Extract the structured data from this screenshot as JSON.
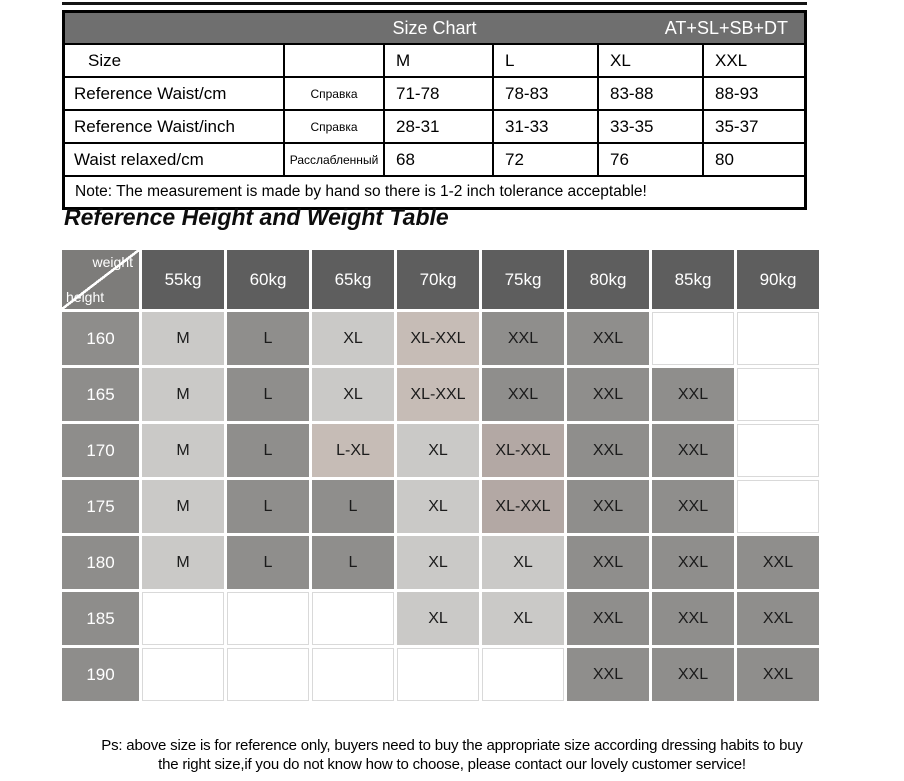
{
  "colors": {
    "bar": "#6f6f6f",
    "head": "#5e5e5e",
    "corner": "#7d7c7a",
    "rowhead": "#8e8d8b",
    "light": "#cac9c7",
    "med": "#8f8e8c",
    "warm": "#c6bcb6",
    "warm2": "#b3a8a4"
  },
  "size_chart": {
    "title": "Size Chart",
    "tag": "AT+SL+SB+DT",
    "rows": [
      {
        "label": "Size",
        "ru": "",
        "values": [
          "M",
          "L",
          "XL",
          "XXL"
        ]
      },
      {
        "label": "Reference Waist/cm",
        "ru": "Справка",
        "values": [
          "71-78",
          "78-83",
          "83-88",
          "88-93"
        ]
      },
      {
        "label": "Reference Waist/inch",
        "ru": "Справка",
        "values": [
          "28-31",
          "31-33",
          "33-35",
          "35-37"
        ]
      },
      {
        "label": "Waist relaxed/cm",
        "ru": "Расслабленный",
        "values": [
          "68",
          "72",
          "76",
          "80"
        ]
      }
    ],
    "note": "Note: The measurement is made by hand so there is 1-2 inch tolerance acceptable!"
  },
  "height_weight": {
    "heading": "Reference Height and Weight Table",
    "corner_top": "weight",
    "corner_bottom": "height",
    "weights": [
      "55kg",
      "60kg",
      "65kg",
      "70kg",
      "75kg",
      "80kg",
      "85kg",
      "90kg"
    ],
    "rows": [
      {
        "height": "160",
        "cells": [
          {
            "t": "M",
            "s": "light"
          },
          {
            "t": "L",
            "s": "med"
          },
          {
            "t": "XL",
            "s": "light"
          },
          {
            "t": "XL-XXL",
            "s": "warm"
          },
          {
            "t": "XXL",
            "s": "med"
          },
          {
            "t": "XXL",
            "s": "med"
          },
          {
            "t": "",
            "s": "empty"
          },
          {
            "t": "",
            "s": "empty"
          }
        ]
      },
      {
        "height": "165",
        "cells": [
          {
            "t": "M",
            "s": "light"
          },
          {
            "t": "L",
            "s": "med"
          },
          {
            "t": "XL",
            "s": "light"
          },
          {
            "t": "XL-XXL",
            "s": "warm"
          },
          {
            "t": "XXL",
            "s": "med"
          },
          {
            "t": "XXL",
            "s": "med"
          },
          {
            "t": "XXL",
            "s": "med"
          },
          {
            "t": "",
            "s": "empty"
          }
        ]
      },
      {
        "height": "170",
        "cells": [
          {
            "t": "M",
            "s": "light"
          },
          {
            "t": "L",
            "s": "med"
          },
          {
            "t": "L-XL",
            "s": "warm"
          },
          {
            "t": "XL",
            "s": "light"
          },
          {
            "t": "XL-XXL",
            "s": "warm2"
          },
          {
            "t": "XXL",
            "s": "med"
          },
          {
            "t": "XXL",
            "s": "med"
          },
          {
            "t": "",
            "s": "empty"
          }
        ]
      },
      {
        "height": "175",
        "cells": [
          {
            "t": "M",
            "s": "light"
          },
          {
            "t": "L",
            "s": "med"
          },
          {
            "t": "L",
            "s": "med"
          },
          {
            "t": "XL",
            "s": "light"
          },
          {
            "t": "XL-XXL",
            "s": "warm2"
          },
          {
            "t": "XXL",
            "s": "med"
          },
          {
            "t": "XXL",
            "s": "med"
          },
          {
            "t": "",
            "s": "empty"
          }
        ]
      },
      {
        "height": "180",
        "cells": [
          {
            "t": "M",
            "s": "light"
          },
          {
            "t": "L",
            "s": "med"
          },
          {
            "t": "L",
            "s": "med"
          },
          {
            "t": "XL",
            "s": "light"
          },
          {
            "t": "XL",
            "s": "light"
          },
          {
            "t": "XXL",
            "s": "med"
          },
          {
            "t": "XXL",
            "s": "med"
          },
          {
            "t": "XXL",
            "s": "med"
          }
        ]
      },
      {
        "height": "185",
        "cells": [
          {
            "t": "",
            "s": "empty"
          },
          {
            "t": "",
            "s": "empty"
          },
          {
            "t": "",
            "s": "empty"
          },
          {
            "t": "XL",
            "s": "light"
          },
          {
            "t": "XL",
            "s": "light"
          },
          {
            "t": "XXL",
            "s": "med"
          },
          {
            "t": "XXL",
            "s": "med"
          },
          {
            "t": "XXL",
            "s": "med"
          }
        ]
      },
      {
        "height": "190",
        "cells": [
          {
            "t": "",
            "s": "empty"
          },
          {
            "t": "",
            "s": "empty"
          },
          {
            "t": "",
            "s": "empty"
          },
          {
            "t": "",
            "s": "empty"
          },
          {
            "t": "",
            "s": "empty"
          },
          {
            "t": "XXL",
            "s": "med"
          },
          {
            "t": "XXL",
            "s": "med"
          },
          {
            "t": "XXL",
            "s": "med"
          }
        ]
      }
    ]
  },
  "footer": {
    "line1": "Ps: above size is for reference only, buyers need to buy the appropriate size according dressing habits to buy",
    "line2": "the right size,if you do not know how to choose, please contact our lovely customer service!"
  }
}
